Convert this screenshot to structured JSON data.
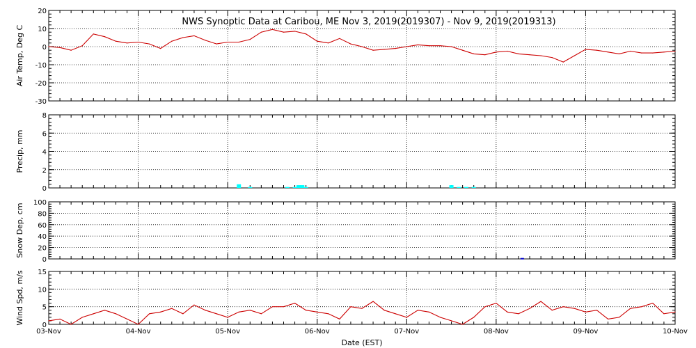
{
  "chart_data": [
    {
      "type": "line",
      "ylabel": "Air Temp, Deg C",
      "ylim": [
        -30,
        20
      ],
      "yticks": [
        -30,
        -20,
        -10,
        0,
        10,
        20
      ],
      "x": [
        "2019-11-03T00:00",
        "2019-11-03T03:00",
        "2019-11-03T06:00",
        "2019-11-03T09:00",
        "2019-11-03T12:00",
        "2019-11-03T15:00",
        "2019-11-03T18:00",
        "2019-11-03T21:00",
        "2019-11-04T00:00",
        "2019-11-04T03:00",
        "2019-11-04T06:00",
        "2019-11-04T09:00",
        "2019-11-04T12:00",
        "2019-11-04T15:00",
        "2019-11-04T18:00",
        "2019-11-04T21:00",
        "2019-11-05T00:00",
        "2019-11-05T03:00",
        "2019-11-05T06:00",
        "2019-11-05T09:00",
        "2019-11-05T12:00",
        "2019-11-05T15:00",
        "2019-11-05T18:00",
        "2019-11-05T21:00",
        "2019-11-06T00:00",
        "2019-11-06T03:00",
        "2019-11-06T06:00",
        "2019-11-06T09:00",
        "2019-11-06T12:00",
        "2019-11-06T15:00",
        "2019-11-06T18:00",
        "2019-11-06T21:00",
        "2019-11-07T00:00",
        "2019-11-07T03:00",
        "2019-11-07T06:00",
        "2019-11-07T09:00",
        "2019-11-07T12:00",
        "2019-11-07T15:00",
        "2019-11-07T18:00",
        "2019-11-07T21:00",
        "2019-11-08T00:00",
        "2019-11-08T03:00",
        "2019-11-08T06:00",
        "2019-11-08T09:00",
        "2019-11-08T12:00",
        "2019-11-08T15:00",
        "2019-11-08T18:00",
        "2019-11-08T21:00",
        "2019-11-09T00:00",
        "2019-11-09T03:00",
        "2019-11-09T06:00",
        "2019-11-09T09:00",
        "2019-11-09T12:00",
        "2019-11-09T15:00",
        "2019-11-09T18:00",
        "2019-11-09T21:00",
        "2019-11-10T00:00"
      ],
      "y": [
        0,
        -0.5,
        -2,
        0.5,
        7,
        5.5,
        3,
        2,
        2.5,
        1.5,
        -1,
        3,
        5,
        6,
        3.5,
        1.5,
        2.5,
        2.5,
        4,
        8,
        9.5,
        8,
        8.5,
        7,
        3,
        2,
        4.5,
        1.5,
        0,
        -2,
        -1.5,
        -1,
        0,
        1,
        0.5,
        0.5,
        0,
        -2,
        -4,
        -4.5,
        -3,
        -2.5,
        -4,
        -4.5,
        -5,
        -6,
        -8.5,
        -5,
        -1.5,
        -2,
        -3,
        -4,
        -2.5,
        -3.5,
        -3.5,
        -3,
        -2.5
      ]
    },
    {
      "type": "bar",
      "ylabel": "Precip, mm",
      "ylim": [
        0,
        8
      ],
      "yticks": [
        0,
        2,
        4,
        6,
        8
      ],
      "x": [
        "2019-11-05T03:00",
        "2019-11-05T06:00",
        "2019-11-05T16:00",
        "2019-11-05T18:00",
        "2019-11-05T19:00",
        "2019-11-05T20:00",
        "2019-11-05T21:00",
        "2019-11-07T12:00",
        "2019-11-07T14:00",
        "2019-11-07T16:00",
        "2019-11-07T18:00"
      ],
      "values": [
        0.4,
        0.1,
        0.1,
        0.1,
        0.3,
        0.3,
        0.1,
        0.3,
        0.1,
        0.1,
        0.1
      ]
    },
    {
      "type": "bar",
      "ylabel": "Snow Dep, cm",
      "ylim": [
        0,
        100
      ],
      "yticks": [
        0,
        20,
        40,
        60,
        80,
        100
      ],
      "x": [
        "2019-11-08T07:00"
      ],
      "values": [
        1
      ]
    },
    {
      "type": "line",
      "ylabel": "Wind Spd, m/s",
      "xlabel": "Date (EST)",
      "ylim": [
        0,
        15
      ],
      "yticks": [
        0,
        5,
        10,
        15
      ],
      "x": [
        "2019-11-03T00:00",
        "2019-11-03T03:00",
        "2019-11-03T06:00",
        "2019-11-03T09:00",
        "2019-11-03T12:00",
        "2019-11-03T15:00",
        "2019-11-03T18:00",
        "2019-11-03T21:00",
        "2019-11-04T00:00",
        "2019-11-04T03:00",
        "2019-11-04T06:00",
        "2019-11-04T09:00",
        "2019-11-04T12:00",
        "2019-11-04T15:00",
        "2019-11-04T18:00",
        "2019-11-04T21:00",
        "2019-11-05T00:00",
        "2019-11-05T03:00",
        "2019-11-05T06:00",
        "2019-11-05T09:00",
        "2019-11-05T12:00",
        "2019-11-05T15:00",
        "2019-11-05T18:00",
        "2019-11-05T21:00",
        "2019-11-06T00:00",
        "2019-11-06T03:00",
        "2019-11-06T06:00",
        "2019-11-06T09:00",
        "2019-11-06T12:00",
        "2019-11-06T15:00",
        "2019-11-06T18:00",
        "2019-11-06T21:00",
        "2019-11-07T00:00",
        "2019-11-07T03:00",
        "2019-11-07T06:00",
        "2019-11-07T09:00",
        "2019-11-07T12:00",
        "2019-11-07T15:00",
        "2019-11-07T18:00",
        "2019-11-07T21:00",
        "2019-11-08T00:00",
        "2019-11-08T03:00",
        "2019-11-08T06:00",
        "2019-11-08T09:00",
        "2019-11-08T12:00",
        "2019-11-08T15:00",
        "2019-11-08T18:00",
        "2019-11-08T21:00",
        "2019-11-09T00:00",
        "2019-11-09T03:00",
        "2019-11-09T06:00",
        "2019-11-09T09:00",
        "2019-11-09T12:00",
        "2019-11-09T15:00",
        "2019-11-09T18:00",
        "2019-11-09T21:00",
        "2019-11-10T00:00"
      ],
      "y": [
        1,
        1.5,
        0,
        2,
        3,
        4,
        3,
        1.5,
        0,
        3,
        3.5,
        4.5,
        3,
        5.5,
        4,
        3,
        2,
        3.5,
        4,
        3,
        5,
        5,
        6,
        4,
        3.5,
        3,
        1.5,
        5,
        4.5,
        6.5,
        4,
        3,
        2,
        4,
        3.5,
        2,
        1,
        0,
        2,
        5,
        6,
        3.5,
        3,
        4.5,
        6.5,
        4,
        5,
        4.5,
        3.5,
        4,
        1.5,
        2,
        4.5,
        5,
        6,
        3,
        3.5
      ]
    }
  ],
  "title": "NWS Synoptic Data at Caribou, ME   Nov  3, 2019(2019307) - Nov  9, 2019(2019313)",
  "xlabel": "Date (EST)",
  "x_ticklabels": [
    "03-Nov",
    "04-Nov",
    "05-Nov",
    "06-Nov",
    "07-Nov",
    "08-Nov",
    "09-Nov",
    "10-Nov"
  ],
  "colors": {
    "line": "#cc0000",
    "precip": "#00ffff",
    "snow": "#0000cc",
    "frame": "#000000"
  }
}
